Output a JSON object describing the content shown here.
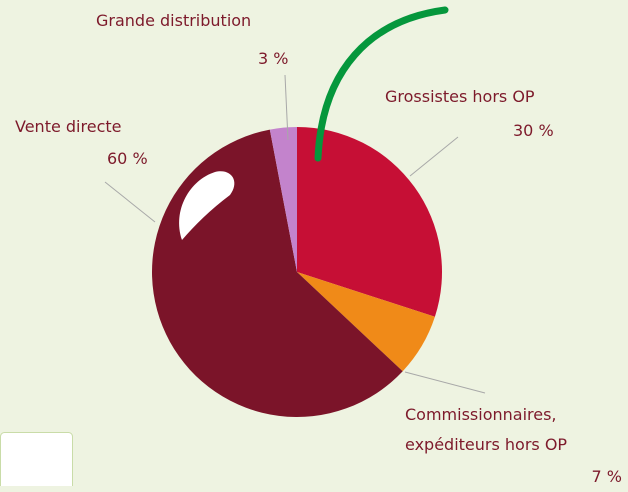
{
  "chart_data": {
    "type": "pie",
    "categories": [
      "Grossistes hors OP",
      "Commissionnaires,\nexpéditeurs  hors OP",
      "Vente directe",
      "Grande distribution"
    ],
    "values": [
      30,
      7,
      60,
      3
    ],
    "value_labels": [
      "30 %",
      "7 %",
      "60 %",
      "3 %"
    ],
    "colors": [
      "#c60f35",
      "#f08a18",
      "#7b1429",
      "#c383cc"
    ]
  }
}
